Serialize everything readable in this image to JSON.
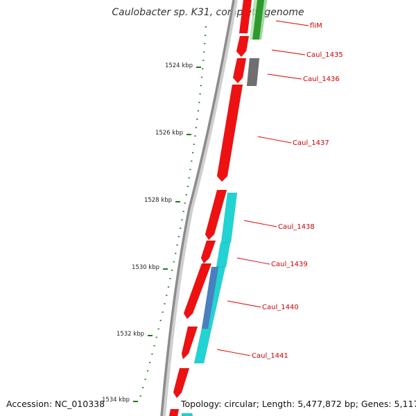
{
  "title": "Caulobacter sp. K31, complete genome",
  "footer": {
    "accession": "Accession: NC_010338",
    "topology": "Topology: circular; Length: 5,477,872 bp; Genes: 5,117"
  },
  "colors": {
    "backbone": "#8c8c8c",
    "forward_gene": "#ee1111",
    "reverse_gene": "#22d3d3",
    "flim_gene": "#2e9a2e",
    "other_gene": "#6f6f6f",
    "overlap_feature": "#4a7fc0",
    "tick": "#1a7a1a",
    "label_line": "#dd0000"
  },
  "ticks": [
    "1524 kbp",
    "1526 kbp",
    "1528 kbp",
    "1530 kbp",
    "1532 kbp",
    "1534 kbp"
  ],
  "genes": [
    {
      "label": "fliM"
    },
    {
      "label": "Caul_1435"
    },
    {
      "label": "Caul_1436"
    },
    {
      "label": "Caul_1437"
    },
    {
      "label": "Caul_1438"
    },
    {
      "label": "Caul_1439"
    },
    {
      "label": "Caul_1440"
    },
    {
      "label": "Caul_1441"
    }
  ]
}
